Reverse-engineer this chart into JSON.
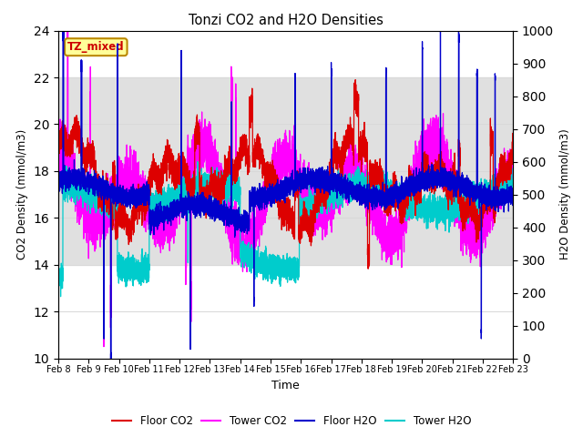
{
  "title": "Tonzi CO2 and H2O Densities",
  "xlabel": "Time",
  "ylabel_left": "CO2 Density (mmol/m3)",
  "ylabel_right": "H2O Density (mmol/m3)",
  "annotation": "TZ_mixed",
  "annotation_color": "#cc0000",
  "annotation_bg": "#ffff99",
  "annotation_border": "#bb8800",
  "ylim_left": [
    10,
    24
  ],
  "ylim_right": [
    0,
    1000
  ],
  "yticks_left": [
    10,
    12,
    14,
    16,
    18,
    20,
    22,
    24
  ],
  "yticks_right": [
    0,
    100,
    200,
    300,
    400,
    500,
    600,
    700,
    800,
    900,
    1000
  ],
  "xtick_labels": [
    "Feb 8",
    "Feb 9",
    "Feb 10",
    "Feb 11",
    "Feb 12",
    "Feb 13",
    "Feb 14",
    "Feb 15",
    "Feb 16",
    "Feb 17",
    "Feb 18",
    "Feb 19",
    "Feb 20",
    "Feb 21",
    "Feb 22",
    "Feb 23"
  ],
  "color_floor_co2": "#dd0000",
  "color_tower_co2": "#ff00ff",
  "color_floor_h2o": "#0000cc",
  "color_tower_h2o": "#00cccc",
  "legend_labels": [
    "Floor CO2",
    "Tower CO2",
    "Floor H2O",
    "Tower H2O"
  ],
  "background_color": "#ffffff",
  "grid_color": "#d8d8d8",
  "shading_color": "#e0e0e0",
  "shading_ylim": [
    14,
    22
  ],
  "n_points": 7200,
  "seed": 7
}
